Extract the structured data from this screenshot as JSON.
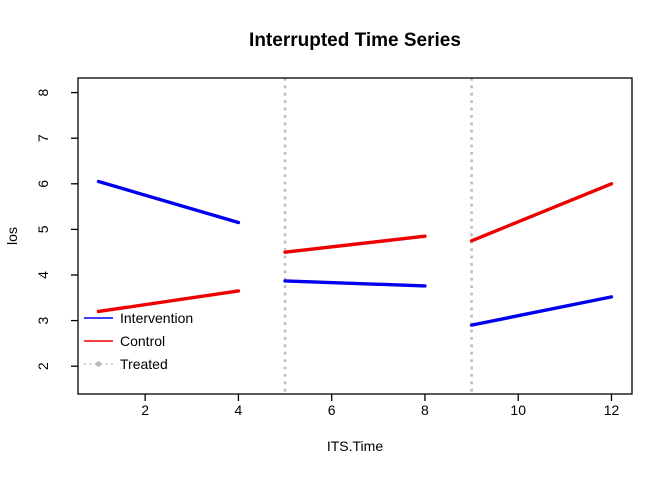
{
  "chart_data": {
    "type": "line",
    "title": "Interrupted Time Series",
    "xlabel": "ITS.Time",
    "ylabel": "los",
    "xlim": [
      0.56,
      12.44
    ],
    "ylim": [
      1.39,
      8.32
    ],
    "x_ticks": [
      2,
      4,
      6,
      8,
      10,
      12
    ],
    "y_ticks": [
      2,
      3,
      4,
      5,
      6,
      7,
      8
    ],
    "grid": false,
    "background": "#ffffff",
    "frame_color": "#000000",
    "legend_position": "bottom-left-inside",
    "series": [
      {
        "name": "Intervention",
        "color": "#0000ee",
        "segments": [
          [
            [
              1,
              6.05
            ],
            [
              4,
              5.15
            ]
          ],
          [
            [
              5,
              3.87
            ],
            [
              8,
              3.76
            ]
          ],
          [
            [
              9,
              2.9
            ],
            [
              12,
              3.52
            ]
          ]
        ]
      },
      {
        "name": "Control",
        "color": "#ee0000",
        "segments": [
          [
            [
              1,
              3.2
            ],
            [
              4,
              3.65
            ]
          ],
          [
            [
              5,
              4.5
            ],
            [
              8,
              4.85
            ]
          ],
          [
            [
              9,
              4.75
            ],
            [
              12,
              6.0
            ]
          ]
        ]
      }
    ],
    "treated": {
      "label": "Treated",
      "color": "#bdbdbd",
      "times": [
        5,
        9
      ],
      "style": "dotted"
    }
  }
}
